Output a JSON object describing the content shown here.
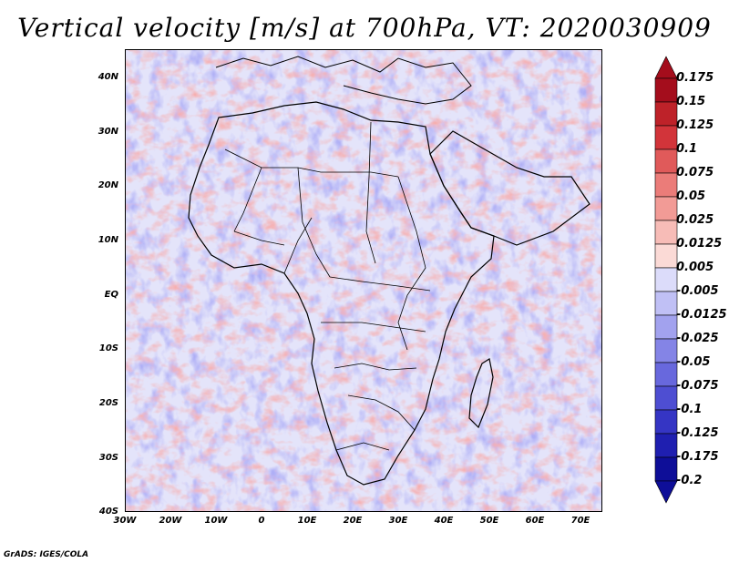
{
  "title": "Vertical velocity [m/s] at 700hPa, VT: 2020030909",
  "footer": "GrADS: IGES/COLA",
  "axes": {
    "lat_labels": [
      "40N",
      "30N",
      "20N",
      "10N",
      "EQ",
      "10S",
      "20S",
      "30S",
      "40S"
    ],
    "lon_labels": [
      "30W",
      "20W",
      "10W",
      "0",
      "10E",
      "20E",
      "30E",
      "40E",
      "50E",
      "60E",
      "70E"
    ]
  },
  "colorbar": {
    "labels": [
      "0.175",
      "0.15",
      "0.125",
      "0.1",
      "0.075",
      "0.05",
      "0.025",
      "0.0125",
      "0.005",
      "-0.005",
      "-0.0125",
      "-0.025",
      "-0.05",
      "-0.075",
      "-0.1",
      "-0.125",
      "-0.175",
      "-0.2"
    ],
    "colors": [
      "#a40d1c",
      "#be2229",
      "#d2343a",
      "#e05a5a",
      "#eb7c79",
      "#f29b96",
      "#f7bcb7",
      "#fbdad6",
      "#ffffff",
      "#dcdcfa",
      "#c0c0f5",
      "#a2a2ee",
      "#8484e6",
      "#6868dd",
      "#4e4ed2",
      "#3535c4",
      "#1f1fb0",
      "#0e0e98"
    ]
  },
  "palette": {
    "ocean": "#e8e8fb",
    "blue": "#7f7fe8",
    "red": "#ee7a78",
    "border": "#000000"
  }
}
